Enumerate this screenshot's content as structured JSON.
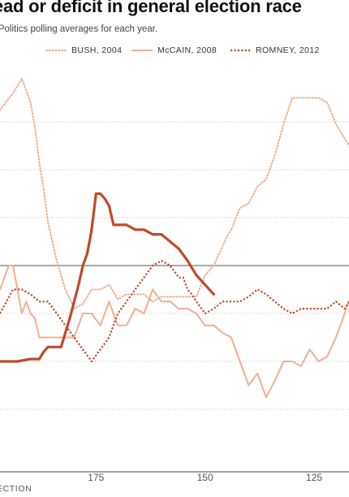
{
  "title": "lead or deficit in general election race",
  "subtitle": "rPolitics polling averages for each year.",
  "footer": "ECTION",
  "colors": {
    "bush": "#eab08e",
    "mccain": "#eeb093",
    "romney": "#c0492c",
    "gridline": "#b0b0b0",
    "zero_line": "#555555"
  },
  "legend": [
    {
      "label": "BUSH, 2004",
      "series": "bush",
      "style": "dotted"
    },
    {
      "label": "McCAIN, 2008",
      "series": "mccain",
      "style": "solid"
    },
    {
      "label": "ROMNEY, 2012",
      "series": "romney",
      "style": "dashed"
    }
  ],
  "chart_data": {
    "type": "line",
    "title": "lead or deficit in general election race",
    "xlabel": "",
    "ylabel": "",
    "x_axis": {
      "reversed": true,
      "range": [
        197,
        117
      ],
      "ticks": [
        175,
        150,
        125
      ]
    },
    "y_axis": {
      "range": [
        -8,
        8
      ],
      "gridlines": [
        -6,
        -4,
        -2,
        0,
        2,
        4,
        6
      ],
      "zero_line": 0
    },
    "grid": true,
    "legend_position": "top",
    "series": [
      {
        "name": "BUSH, 2004",
        "style": "dotted",
        "x": [
          197,
          194,
          192,
          190,
          189,
          188,
          187,
          186,
          184,
          182,
          180,
          178,
          176,
          174,
          172,
          170,
          168,
          166,
          164,
          162,
          160,
          158,
          156,
          154,
          152,
          150,
          148,
          146,
          145,
          144,
          142,
          140,
          138,
          136,
          134,
          132,
          130,
          128,
          126,
          124,
          122,
          120,
          118,
          117
        ],
        "y": [
          6.5,
          7.2,
          7.8,
          6.8,
          5.8,
          4.3,
          3.2,
          1.8,
          0.2,
          -1.0,
          -1.8,
          -1.6,
          -1.0,
          -1.0,
          -0.8,
          -1.4,
          -1.2,
          -1.2,
          -1.2,
          -1.5,
          -1.3,
          -1.3,
          -1.3,
          -1.3,
          -1.3,
          -0.4,
          0.0,
          0.8,
          1.2,
          1.5,
          2.4,
          2.6,
          3.3,
          3.6,
          4.6,
          5.9,
          7.0,
          7.0,
          7.0,
          7.0,
          6.8,
          5.9,
          5.3,
          5.0
        ]
      },
      {
        "name": "McCAIN, 2008",
        "style": "solid",
        "x": [
          197,
          196,
          195,
          194,
          193,
          192,
          191,
          190,
          189,
          188,
          187,
          186,
          185,
          184,
          182,
          180,
          178,
          176,
          174,
          172,
          170,
          168,
          166,
          164,
          162,
          160,
          158,
          156,
          154,
          152,
          150,
          148,
          146,
          144,
          142,
          140,
          138,
          136,
          134,
          132,
          130,
          128,
          126,
          124,
          122,
          120,
          118,
          117
        ],
        "y": [
          -1.0,
          -0.5,
          0.0,
          0.0,
          -1.0,
          -2.0,
          -1.5,
          -2.0,
          -2.2,
          -3.0,
          -3.0,
          -3.0,
          -3.0,
          -3.0,
          -3.0,
          -3.0,
          -2.0,
          -2.0,
          -2.5,
          -1.5,
          -2.5,
          -2.5,
          -1.8,
          -2.0,
          -1.0,
          -1.5,
          -1.5,
          -1.8,
          -1.8,
          -2.0,
          -2.5,
          -2.5,
          -2.8,
          -3.0,
          -4.0,
          -5.0,
          -4.5,
          -5.5,
          -4.8,
          -4.0,
          -4.0,
          -4.2,
          -3.5,
          -4.0,
          -3.8,
          -3.0,
          -2.0,
          -1.5
        ]
      },
      {
        "name": "ROMNEY, 2012",
        "style": "dashed",
        "x": [
          197,
          194,
          192,
          190,
          188,
          186,
          184,
          182,
          180,
          178,
          176,
          174,
          172,
          170,
          168,
          166,
          164,
          162,
          160,
          158,
          156,
          155,
          154,
          153,
          152,
          150,
          148,
          146,
          144,
          142,
          140,
          138,
          136,
          134,
          132,
          130,
          128,
          126,
          124,
          122,
          120,
          118,
          117
        ],
        "y": [
          -2.0,
          -1.0,
          -1.0,
          -1.2,
          -1.5,
          -1.5,
          -2.0,
          -2.5,
          -3.0,
          -3.5,
          -4.0,
          -3.5,
          -3.0,
          -2.0,
          -1.5,
          -1.0,
          -0.5,
          0.0,
          0.2,
          0.0,
          -0.5,
          -0.5,
          -1.0,
          -1.2,
          -1.5,
          -2.0,
          -1.8,
          -1.5,
          -1.5,
          -1.5,
          -1.3,
          -1.0,
          -1.2,
          -1.5,
          -1.8,
          -2.0,
          -1.8,
          -1.8,
          -1.8,
          -1.8,
          -1.5,
          -1.8,
          -1.5
        ]
      },
      {
        "name": "",
        "style": "bold",
        "x": [
          197,
          193,
          190,
          189,
          188,
          187,
          186,
          185,
          184,
          183,
          182,
          181,
          180,
          179,
          178,
          177,
          176,
          175,
          174,
          173,
          172,
          171,
          170,
          168,
          166,
          164,
          162,
          160,
          158,
          156,
          154,
          152,
          150,
          148
        ],
        "y": [
          -4.0,
          -4.0,
          -3.9,
          -3.9,
          -3.9,
          -3.6,
          -3.4,
          -3.4,
          -3.4,
          -3.4,
          -2.8,
          -2.2,
          -1.5,
          -0.8,
          0.0,
          0.5,
          1.5,
          3.0,
          3.0,
          2.8,
          2.5,
          1.7,
          1.7,
          1.7,
          1.5,
          1.5,
          1.3,
          1.3,
          1.0,
          0.7,
          0.2,
          -0.4,
          -0.8,
          -1.2
        ]
      }
    ]
  }
}
